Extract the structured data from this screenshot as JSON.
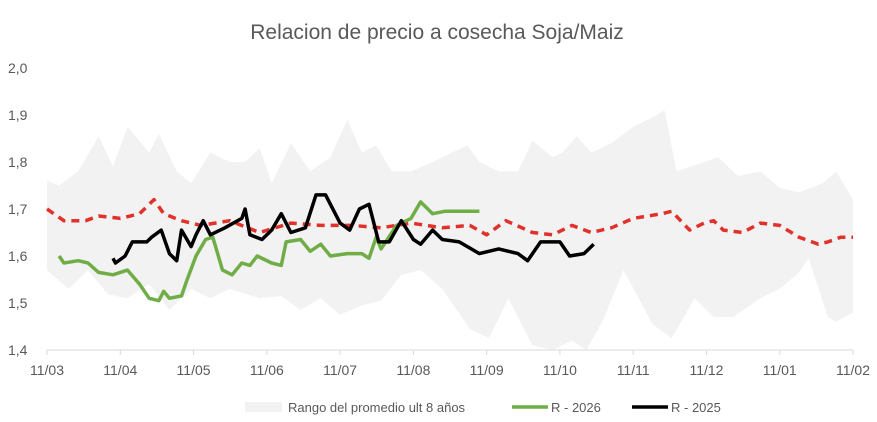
{
  "chart_data": {
    "type": "line",
    "title": "Relacion de precio a cosecha Soja/Maiz",
    "xlabel": "",
    "ylabel": "",
    "ylim": [
      1.4,
      2.0
    ],
    "yticks": [
      "1,4",
      "1,5",
      "1,6",
      "1,7",
      "1,8",
      "1,9",
      "2,0"
    ],
    "xticks": [
      "11/03",
      "11/04",
      "11/05",
      "11/06",
      "11/07",
      "11/08",
      "11/09",
      "11/10",
      "11/11",
      "11/12",
      "11/01",
      "11/02"
    ],
    "grid": false,
    "legend_position": "bottom",
    "colors": {
      "band": "#f2f2f2",
      "r2026": "#70ad47",
      "r2025": "#000000",
      "average": "#e0322b"
    },
    "band": {
      "name": "Rango del promedio ult 8 años",
      "upper": [
        [
          "11/03",
          1.76
        ],
        [
          "16/03",
          1.75
        ],
        [
          "24/03",
          1.78
        ],
        [
          "02/04",
          1.855
        ],
        [
          "08/04",
          1.79
        ],
        [
          "14/04",
          1.875
        ],
        [
          "23/04",
          1.82
        ],
        [
          "27/04",
          1.86
        ],
        [
          "04/05",
          1.78
        ],
        [
          "10/05",
          1.755
        ],
        [
          "18/05",
          1.82
        ],
        [
          "26/05",
          1.8
        ],
        [
          "02/06",
          1.8
        ],
        [
          "08/06",
          1.83
        ],
        [
          "13/06",
          1.755
        ],
        [
          "21/06",
          1.84
        ],
        [
          "29/06",
          1.78
        ],
        [
          "07/07",
          1.81
        ],
        [
          "14/07",
          1.89
        ],
        [
          "20/07",
          1.82
        ],
        [
          "26/07",
          1.835
        ],
        [
          "02/08",
          1.78
        ],
        [
          "10/08",
          1.78
        ],
        [
          "19/08",
          1.8
        ],
        [
          "27/08",
          1.82
        ],
        [
          "03/09",
          1.835
        ],
        [
          "08/09",
          1.8
        ],
        [
          "16/09",
          1.78
        ],
        [
          "24/09",
          1.78
        ],
        [
          "30/09",
          1.845
        ],
        [
          "08/10",
          1.81
        ],
        [
          "12/10",
          1.82
        ],
        [
          "18/10",
          1.855
        ],
        [
          "24/10",
          1.82
        ],
        [
          "02/11",
          1.84
        ],
        [
          "11/11",
          1.875
        ],
        [
          "19/11",
          1.895
        ],
        [
          "24/11",
          1.91
        ],
        [
          "29/11",
          1.78
        ],
        [
          "10/12",
          1.8
        ],
        [
          "16/12",
          1.81
        ],
        [
          "24/12",
          1.77
        ],
        [
          "03/01",
          1.78
        ],
        [
          "11/01",
          1.745
        ],
        [
          "19/01",
          1.735
        ],
        [
          "29/01",
          1.755
        ],
        [
          "04/02",
          1.78
        ],
        [
          "11/02",
          1.72
        ]
      ],
      "lower": [
        [
          "11/03",
          1.57
        ],
        [
          "20/03",
          1.53
        ],
        [
          "28/03",
          1.57
        ],
        [
          "06/04",
          1.518
        ],
        [
          "14/04",
          1.51
        ],
        [
          "23/04",
          1.54
        ],
        [
          "01/05",
          1.485
        ],
        [
          "10/05",
          1.53
        ],
        [
          "18/05",
          1.51
        ],
        [
          "26/05",
          1.53
        ],
        [
          "08/06",
          1.51
        ],
        [
          "17/06",
          1.515
        ],
        [
          "25/06",
          1.485
        ],
        [
          "03/07",
          1.51
        ],
        [
          "11/07",
          1.475
        ],
        [
          "20/07",
          1.495
        ],
        [
          "28/07",
          1.505
        ],
        [
          "06/08",
          1.56
        ],
        [
          "14/08",
          1.57
        ],
        [
          "23/08",
          1.53
        ],
        [
          "04/09",
          1.445
        ],
        [
          "12/09",
          1.425
        ],
        [
          "20/09",
          1.51
        ],
        [
          "30/09",
          1.41
        ],
        [
          "08/10",
          1.4
        ],
        [
          "16/10",
          1.42
        ],
        [
          "22/10",
          1.4
        ],
        [
          "29/10",
          1.465
        ],
        [
          "07/11",
          1.57
        ],
        [
          "19/11",
          1.455
        ],
        [
          "27/11",
          1.425
        ],
        [
          "06/12",
          1.51
        ],
        [
          "14/12",
          1.47
        ],
        [
          "22/12",
          1.47
        ],
        [
          "03/01",
          1.51
        ],
        [
          "11/01",
          1.53
        ],
        [
          "19/01",
          1.565
        ],
        [
          "23/01",
          1.595
        ],
        [
          "31/01",
          1.47
        ],
        [
          "04/02",
          1.46
        ],
        [
          "11/02",
          1.48
        ]
      ]
    },
    "series": [
      {
        "name": "R - 2026",
        "points": [
          [
            "16/03",
            1.6
          ],
          [
            "18/03",
            1.585
          ],
          [
            "24/03",
            1.59
          ],
          [
            "28/03",
            1.585
          ],
          [
            "02/04",
            1.565
          ],
          [
            "08/04",
            1.56
          ],
          [
            "14/04",
            1.57
          ],
          [
            "19/04",
            1.54
          ],
          [
            "23/04",
            1.51
          ],
          [
            "27/04",
            1.505
          ],
          [
            "29/04",
            1.525
          ],
          [
            "01/05",
            1.51
          ],
          [
            "06/05",
            1.515
          ],
          [
            "08/05",
            1.545
          ],
          [
            "12/05",
            1.6
          ],
          [
            "16/05",
            1.635
          ],
          [
            "19/05",
            1.64
          ],
          [
            "23/05",
            1.57
          ],
          [
            "27/05",
            1.56
          ],
          [
            "31/05",
            1.585
          ],
          [
            "04/06",
            1.58
          ],
          [
            "07/06",
            1.6
          ],
          [
            "13/06",
            1.585
          ],
          [
            "17/06",
            1.58
          ],
          [
            "19/06",
            1.63
          ],
          [
            "25/06",
            1.635
          ],
          [
            "29/06",
            1.61
          ],
          [
            "03/07",
            1.625
          ],
          [
            "07/07",
            1.6
          ],
          [
            "14/07",
            1.605
          ],
          [
            "20/07",
            1.605
          ],
          [
            "23/07",
            1.595
          ],
          [
            "26/07",
            1.64
          ],
          [
            "28/07",
            1.615
          ],
          [
            "04/08",
            1.665
          ],
          [
            "10/08",
            1.68
          ],
          [
            "14/08",
            1.715
          ],
          [
            "19/08",
            1.69
          ],
          [
            "24/08",
            1.695
          ],
          [
            "30/08",
            1.695
          ],
          [
            "08/09",
            1.695
          ]
        ]
      },
      {
        "name": "R - 2025",
        "points": [
          [
            "08/04",
            1.595
          ],
          [
            "09/04",
            1.585
          ],
          [
            "13/04",
            1.6
          ],
          [
            "16/04",
            1.63
          ],
          [
            "22/04",
            1.63
          ],
          [
            "24/04",
            1.64
          ],
          [
            "28/04",
            1.655
          ],
          [
            "01/05",
            1.605
          ],
          [
            "04/05",
            1.59
          ],
          [
            "06/05",
            1.655
          ],
          [
            "10/05",
            1.62
          ],
          [
            "12/05",
            1.645
          ],
          [
            "15/05",
            1.675
          ],
          [
            "18/05",
            1.645
          ],
          [
            "24/05",
            1.66
          ],
          [
            "31/05",
            1.68
          ],
          [
            "02/06",
            1.7
          ],
          [
            "04/06",
            1.645
          ],
          [
            "09/06",
            1.635
          ],
          [
            "13/06",
            1.655
          ],
          [
            "17/06",
            1.69
          ],
          [
            "21/06",
            1.65
          ],
          [
            "27/06",
            1.66
          ],
          [
            "01/07",
            1.73
          ],
          [
            "05/07",
            1.73
          ],
          [
            "07/07",
            1.71
          ],
          [
            "11/07",
            1.67
          ],
          [
            "15/07",
            1.655
          ],
          [
            "19/07",
            1.7
          ],
          [
            "23/07",
            1.71
          ],
          [
            "27/07",
            1.63
          ],
          [
            "01/08",
            1.63
          ],
          [
            "06/08",
            1.675
          ],
          [
            "11/08",
            1.635
          ],
          [
            "14/08",
            1.625
          ],
          [
            "19/08",
            1.655
          ],
          [
            "23/08",
            1.635
          ],
          [
            "30/08",
            1.63
          ],
          [
            "08/09",
            1.605
          ],
          [
            "16/09",
            1.615
          ],
          [
            "24/09",
            1.605
          ],
          [
            "28/09",
            1.59
          ],
          [
            "03/10",
            1.63
          ],
          [
            "11/10",
            1.63
          ],
          [
            "15/10",
            1.6
          ],
          [
            "21/10",
            1.605
          ],
          [
            "25/10",
            1.625
          ]
        ]
      },
      {
        "points": [
          [
            "11/03",
            1.7
          ],
          [
            "18/03",
            1.675
          ],
          [
            "27/03",
            1.675
          ],
          [
            "02/04",
            1.685
          ],
          [
            "11/04",
            1.68
          ],
          [
            "19/04",
            1.69
          ],
          [
            "25/04",
            1.72
          ],
          [
            "29/04",
            1.69
          ],
          [
            "06/05",
            1.675
          ],
          [
            "14/05",
            1.665
          ],
          [
            "26/05",
            1.675
          ],
          [
            "08/06",
            1.65
          ],
          [
            "21/06",
            1.67
          ],
          [
            "03/07",
            1.665
          ],
          [
            "16/07",
            1.665
          ],
          [
            "28/07",
            1.66
          ],
          [
            "10/08",
            1.67
          ],
          [
            "23/08",
            1.66
          ],
          [
            "04/09",
            1.665
          ],
          [
            "11/09",
            1.645
          ],
          [
            "19/09",
            1.675
          ],
          [
            "30/09",
            1.65
          ],
          [
            "08/10",
            1.645
          ],
          [
            "16/10",
            1.665
          ],
          [
            "24/10",
            1.65
          ],
          [
            "02/11",
            1.66
          ],
          [
            "11/11",
            1.68
          ],
          [
            "23/11",
            1.69
          ],
          [
            "27/11",
            1.695
          ],
          [
            "04/12",
            1.655
          ],
          [
            "10/12",
            1.67
          ],
          [
            "14/12",
            1.675
          ],
          [
            "18/12",
            1.655
          ],
          [
            "26/12",
            1.65
          ],
          [
            "03/01",
            1.67
          ],
          [
            "11/01",
            1.665
          ],
          [
            "19/01",
            1.64
          ],
          [
            "27/01",
            1.625
          ],
          [
            "31/01",
            1.63
          ],
          [
            "06/02",
            1.64
          ],
          [
            "11/02",
            1.64
          ]
        ]
      }
    ]
  }
}
